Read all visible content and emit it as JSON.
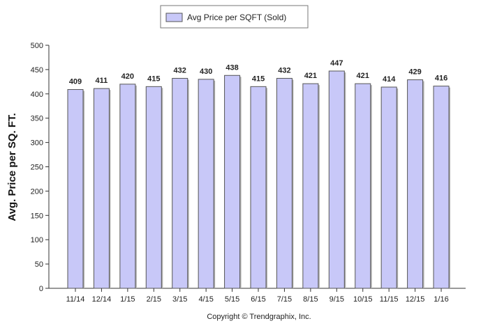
{
  "chart_data": {
    "type": "bar",
    "title": "",
    "xlabel": "",
    "ylabel": "Avg. Price per SQ. FT.",
    "categories": [
      "11/14",
      "12/14",
      "1/15",
      "2/15",
      "3/15",
      "4/15",
      "5/15",
      "6/15",
      "7/15",
      "8/15",
      "9/15",
      "10/15",
      "11/15",
      "12/15",
      "1/16"
    ],
    "series": [
      {
        "name": "Avg Price per SQFT (Sold)",
        "values": [
          409,
          411,
          420,
          415,
          432,
          430,
          438,
          415,
          432,
          421,
          447,
          421,
          414,
          429,
          416
        ]
      }
    ],
    "ylim": [
      0,
      500
    ],
    "yticks": [
      0,
      50,
      100,
      150,
      200,
      250,
      300,
      350,
      400,
      450,
      500
    ],
    "grid": false,
    "legend_position": "top-center",
    "data_labels": true,
    "colors": {
      "bar_fill": "#c8c8f8",
      "bar_stroke": "#555555",
      "bar_shadow": "#b0b0b0",
      "axis": "#333333"
    }
  },
  "footer": {
    "copyright": "Copyright © Trendgraphix, Inc."
  }
}
